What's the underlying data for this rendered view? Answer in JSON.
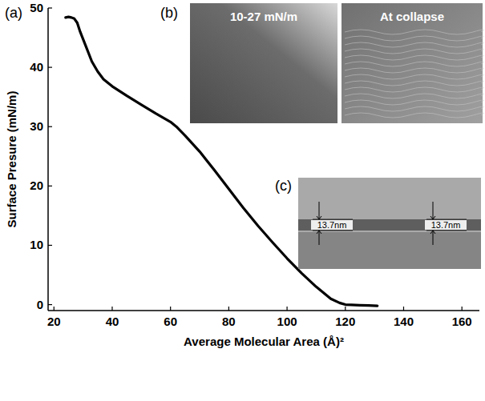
{
  "chart_data": {
    "type": "line",
    "x_label": "Average Molecular Area (Å)²",
    "y_label": "Surface Presure (mN/m)",
    "annotations": [
      "(a)",
      "(b)",
      "10-27 mN/m",
      "At collapse",
      "(c)",
      "13.7nm",
      "13.7nm"
    ],
    "x": [
      131,
      128,
      125,
      122,
      120,
      118,
      115,
      110,
      105,
      100,
      95,
      90,
      85,
      80,
      75,
      70,
      65,
      62,
      60,
      55,
      50,
      45,
      40,
      37,
      35,
      33,
      31,
      29,
      28,
      27,
      26,
      25,
      24
    ],
    "values": [
      -0.2,
      -0.15,
      -0.1,
      -0.05,
      0,
      0.3,
      1,
      3,
      5.3,
      7.8,
      10.5,
      13.3,
      16.3,
      19.5,
      22.7,
      25.8,
      28.5,
      30,
      30.8,
      32.2,
      33.7,
      35.2,
      36.8,
      38,
      39.3,
      41,
      43.5,
      46,
      47.5,
      48.2,
      48.4,
      48.5,
      48.4
    ],
    "color": "#000000",
    "xlim": [
      18,
      166
    ],
    "ylim": [
      -1,
      50
    ],
    "xticks": [
      20,
      40,
      60,
      80,
      100,
      120,
      140,
      160
    ],
    "yticks": [
      0,
      10,
      20,
      30,
      40,
      50
    ],
    "grid": false
  }
}
